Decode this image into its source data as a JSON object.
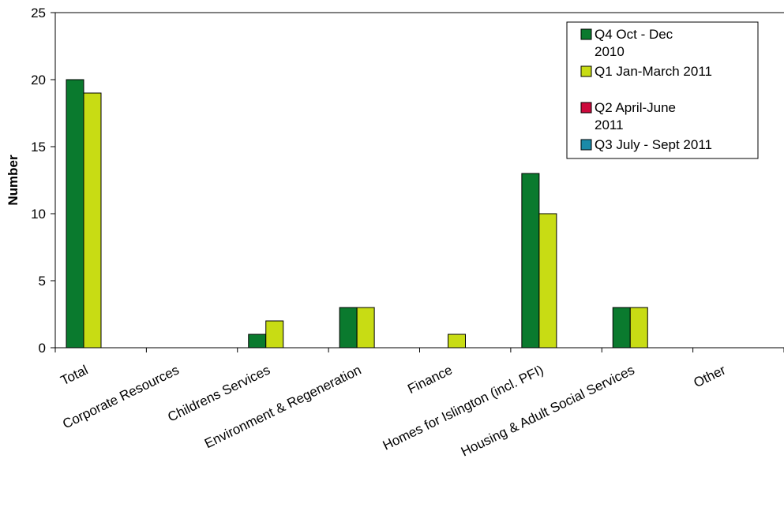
{
  "chart_data": {
    "type": "bar",
    "title": "",
    "xlabel": "",
    "ylabel": "Number",
    "ylim": [
      0,
      25
    ],
    "yticks": [
      "0",
      "5",
      "10",
      "15",
      "20",
      "25"
    ],
    "grid": false,
    "legend_position": "top-right",
    "categories": [
      "Total",
      "Corporate Resources",
      "Childrens Services",
      "Environment & Regeneration",
      "Finance",
      "Homes for Islington (incl. PFI)",
      "Housing & Adult Social Services",
      "Other"
    ],
    "series": [
      {
        "name": "Q4 Oct - Dec 2010",
        "legend_lines": [
          "Q4 Oct - Dec",
          "2010"
        ],
        "color": "#0a7a2e",
        "values": [
          20,
          0,
          1,
          3,
          0,
          13,
          3,
          0
        ]
      },
      {
        "name": "Q1 Jan-March 2011",
        "legend_lines": [
          "Q1 Jan-March 2011"
        ],
        "color": "#c8dc14",
        "values": [
          19,
          0,
          2,
          3,
          1,
          10,
          3,
          0
        ]
      },
      {
        "name": "Q2 April-June 2011",
        "legend_lines": [
          "Q2 April-June",
          "2011"
        ],
        "color": "#cc0a3c",
        "values": [
          0,
          0,
          0,
          0,
          0,
          0,
          0,
          0
        ]
      },
      {
        "name": "Q3 July - Sept 2011",
        "legend_lines": [
          "Q3 July - Sept 2011"
        ],
        "color": "#1a8aa8",
        "values": [
          0,
          0,
          0,
          0,
          0,
          0,
          0,
          0
        ]
      }
    ]
  }
}
